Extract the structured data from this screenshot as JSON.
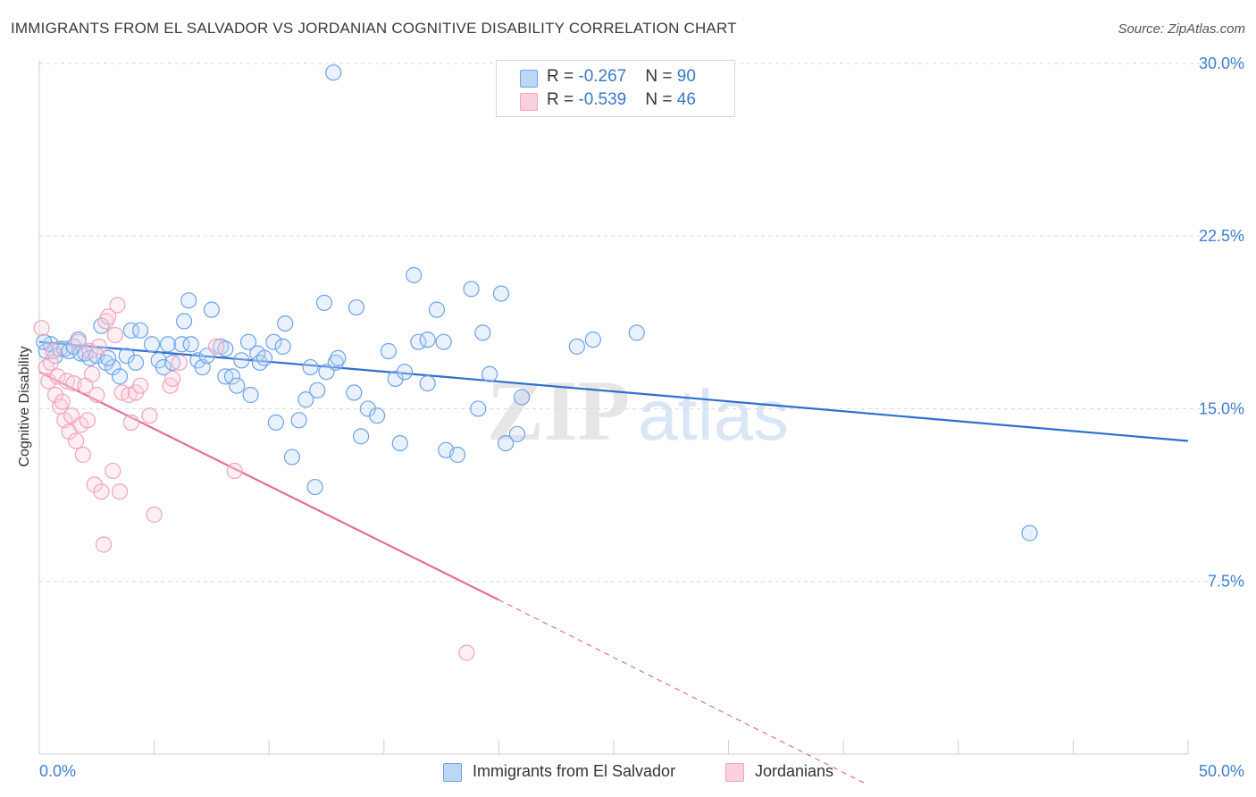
{
  "title": "IMMIGRANTS FROM EL SALVADOR VS JORDANIAN COGNITIVE DISABILITY CORRELATION CHART",
  "source": "Source: ZipAtlas.com",
  "watermark": {
    "zip": "ZIP",
    "atlas": "atlas"
  },
  "legend": {
    "rows": [
      {
        "r_label": "R = ",
        "r_value": "-0.267",
        "n_label": "N = ",
        "n_value": "90"
      },
      {
        "r_label": "R = ",
        "r_value": "-0.539",
        "n_label": "N = ",
        "n_value": "46"
      }
    ]
  },
  "chart_data": {
    "type": "scatter",
    "title": "IMMIGRANTS FROM EL SALVADOR VS JORDANIAN COGNITIVE DISABILITY CORRELATION CHART",
    "xlabel": "",
    "ylabel": "Cognitive Disability",
    "xlim": [
      0,
      50
    ],
    "ylim": [
      0,
      30.5
    ],
    "x_tick_labels": [
      "0.0%",
      "50.0%"
    ],
    "y_ticks": [
      7.5,
      15.0,
      22.5,
      30.0
    ],
    "y_tick_labels": [
      "7.5%",
      "15.0%",
      "22.5%",
      "30.0%"
    ],
    "grid": "horizontal dashed",
    "legend_position": "top-center",
    "series": [
      {
        "name": "Immigrants from El Salvador",
        "color": "#6fa3e8",
        "line_color": "#2e6fd0",
        "trend": {
          "x0": 0,
          "y0": 17.9,
          "x1": 50,
          "y1": 13.6
        },
        "points": [
          [
            0.3,
            17.5
          ],
          [
            0.5,
            17.8
          ],
          [
            0.7,
            17.3
          ],
          [
            0.9,
            17.6
          ],
          [
            1.1,
            17.6
          ],
          [
            1.3,
            17.5
          ],
          [
            1.5,
            17.7
          ],
          [
            1.7,
            18.0
          ],
          [
            1.8,
            17.4
          ],
          [
            2.0,
            17.4
          ],
          [
            2.2,
            17.2
          ],
          [
            2.5,
            17.3
          ],
          [
            2.7,
            18.6
          ],
          [
            2.9,
            17.0
          ],
          [
            3.2,
            16.8
          ],
          [
            3.5,
            16.4
          ],
          [
            3.8,
            17.3
          ],
          [
            4.0,
            18.4
          ],
          [
            4.2,
            17.0
          ],
          [
            4.4,
            18.4
          ],
          [
            4.9,
            17.8
          ],
          [
            5.2,
            17.1
          ],
          [
            5.4,
            16.8
          ],
          [
            5.6,
            17.8
          ],
          [
            5.8,
            17.0
          ],
          [
            6.2,
            17.8
          ],
          [
            6.3,
            18.8
          ],
          [
            6.5,
            19.7
          ],
          [
            6.6,
            17.8
          ],
          [
            6.9,
            17.1
          ],
          [
            7.1,
            16.8
          ],
          [
            7.3,
            17.3
          ],
          [
            7.5,
            19.3
          ],
          [
            7.9,
            17.7
          ],
          [
            8.1,
            17.6
          ],
          [
            8.1,
            16.4
          ],
          [
            8.4,
            16.4
          ],
          [
            8.6,
            16.0
          ],
          [
            8.8,
            17.1
          ],
          [
            9.1,
            17.9
          ],
          [
            9.2,
            15.6
          ],
          [
            9.5,
            17.4
          ],
          [
            9.6,
            17.0
          ],
          [
            9.8,
            17.2
          ],
          [
            10.2,
            17.9
          ],
          [
            10.3,
            14.4
          ],
          [
            10.6,
            17.7
          ],
          [
            10.7,
            18.7
          ],
          [
            11.0,
            12.9
          ],
          [
            11.3,
            14.5
          ],
          [
            11.6,
            15.4
          ],
          [
            11.8,
            16.8
          ],
          [
            12.1,
            15.8
          ],
          [
            12.0,
            11.6
          ],
          [
            12.4,
            19.6
          ],
          [
            12.5,
            16.6
          ],
          [
            12.9,
            17.0
          ],
          [
            13.0,
            17.2
          ],
          [
            13.7,
            15.7
          ],
          [
            13.8,
            19.4
          ],
          [
            14.0,
            13.8
          ],
          [
            14.3,
            15.0
          ],
          [
            14.7,
            14.7
          ],
          [
            15.2,
            17.5
          ],
          [
            15.5,
            16.3
          ],
          [
            15.7,
            13.5
          ],
          [
            15.9,
            16.6
          ],
          [
            16.3,
            20.8
          ],
          [
            16.5,
            17.9
          ],
          [
            16.9,
            16.1
          ],
          [
            16.9,
            18.0
          ],
          [
            17.3,
            19.3
          ],
          [
            17.6,
            17.9
          ],
          [
            17.7,
            13.2
          ],
          [
            18.2,
            13.0
          ],
          [
            18.8,
            20.2
          ],
          [
            19.1,
            15.0
          ],
          [
            19.3,
            18.3
          ],
          [
            19.6,
            16.5
          ],
          [
            20.1,
            20.0
          ],
          [
            20.3,
            13.5
          ],
          [
            20.8,
            13.9
          ],
          [
            21.0,
            15.5
          ],
          [
            23.4,
            17.7
          ],
          [
            24.1,
            18.0
          ],
          [
            26.0,
            18.3
          ],
          [
            12.8,
            29.6
          ],
          [
            43.1,
            9.6
          ],
          [
            0.2,
            17.9
          ],
          [
            3.0,
            17.2
          ]
        ]
      },
      {
        "name": "Jordanians",
        "color": "#f2a3bd",
        "line_color": "#e3709a",
        "trend": {
          "x0": 0,
          "y0": 16.6,
          "x1": 20.0,
          "y1": 6.7
        },
        "trend_dashed_to": {
          "x": 36.0,
          "y": -1.3
        },
        "points": [
          [
            0.1,
            18.5
          ],
          [
            0.3,
            16.8
          ],
          [
            0.4,
            16.2
          ],
          [
            0.5,
            17.0
          ],
          [
            0.6,
            17.5
          ],
          [
            0.7,
            15.6
          ],
          [
            0.8,
            16.4
          ],
          [
            0.9,
            15.1
          ],
          [
            1.0,
            15.3
          ],
          [
            1.1,
            14.5
          ],
          [
            1.2,
            16.2
          ],
          [
            1.3,
            14.0
          ],
          [
            1.4,
            14.7
          ],
          [
            1.5,
            16.1
          ],
          [
            1.6,
            13.6
          ],
          [
            1.7,
            17.9
          ],
          [
            1.8,
            14.3
          ],
          [
            1.9,
            13.0
          ],
          [
            2.0,
            16.0
          ],
          [
            2.1,
            14.5
          ],
          [
            2.2,
            17.5
          ],
          [
            2.3,
            16.5
          ],
          [
            2.4,
            11.7
          ],
          [
            2.5,
            15.6
          ],
          [
            2.6,
            17.7
          ],
          [
            2.7,
            11.4
          ],
          [
            2.8,
            9.1
          ],
          [
            2.9,
            18.8
          ],
          [
            3.0,
            19.0
          ],
          [
            3.2,
            12.3
          ],
          [
            3.3,
            18.2
          ],
          [
            3.4,
            19.5
          ],
          [
            3.5,
            11.4
          ],
          [
            3.6,
            15.7
          ],
          [
            3.9,
            15.6
          ],
          [
            4.0,
            14.4
          ],
          [
            4.2,
            15.7
          ],
          [
            4.4,
            16.0
          ],
          [
            4.8,
            14.7
          ],
          [
            5.0,
            10.4
          ],
          [
            5.7,
            16.0
          ],
          [
            5.8,
            16.3
          ],
          [
            6.1,
            17.0
          ],
          [
            7.7,
            17.7
          ],
          [
            8.5,
            12.3
          ],
          [
            18.6,
            4.4
          ]
        ]
      }
    ]
  },
  "bottom_legend": [
    {
      "label": "Immigrants from El Salvador",
      "color": "#6fa3e8"
    },
    {
      "label": "Jordanians",
      "color": "#f2a3bd"
    }
  ]
}
